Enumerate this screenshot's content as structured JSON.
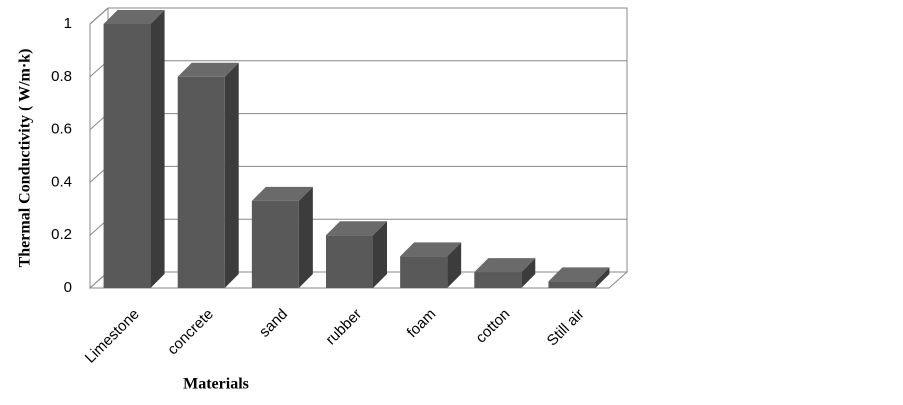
{
  "chart_data": {
    "type": "bar3d",
    "categories": [
      "Limestone",
      "concrete",
      "sand",
      "rubber",
      "foam",
      "cotton",
      "Still air"
    ],
    "values": [
      1.0,
      0.8,
      0.33,
      0.2,
      0.12,
      0.06,
      0.025
    ],
    "color": "#595959",
    "ylim": [
      0,
      1
    ],
    "yticks": [
      0,
      0.2,
      0.4,
      0.6,
      0.8,
      1
    ],
    "grid": true,
    "xlabel": "Materials",
    "ylabel": "Thermal Conductivity ( W/m·k)"
  }
}
